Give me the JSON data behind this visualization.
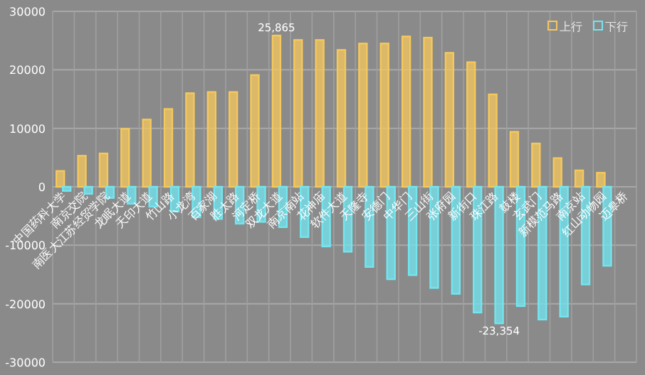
{
  "chart_data": {
    "type": "bar",
    "categories": [
      "中国药科大学",
      "南京交院",
      "南医大江苏经贸学院",
      "龙眠大道",
      "天印大道",
      "竹山路",
      "小龙湾",
      "百家湖",
      "胜太路",
      "河定桥",
      "双龙大道",
      "南京南站",
      "花神庙",
      "软件大道",
      "天隆寺",
      "安德门",
      "中华门",
      "三山街",
      "张府园",
      "新街口",
      "珠江路",
      "鼓楼",
      "玄武门",
      "新模范马路",
      "南京站",
      "红山动物园",
      "迈皋桥"
    ],
    "series": [
      {
        "name": "上行",
        "color": "#f5c85c",
        "values": [
          2700,
          5300,
          5700,
          9900,
          11500,
          13300,
          16000,
          16200,
          16200,
          19100,
          25865,
          25100,
          25100,
          23400,
          24500,
          24500,
          25700,
          25500,
          22900,
          21300,
          15800,
          9400,
          7400,
          4900,
          2800,
          2400,
          null
        ],
        "value_labels": [
          null,
          null,
          null,
          null,
          null,
          null,
          null,
          null,
          null,
          null,
          "25,865",
          null,
          null,
          null,
          null,
          null,
          null,
          null,
          null,
          null,
          null,
          null,
          null,
          null,
          null,
          null,
          null
        ]
      },
      {
        "name": "下行",
        "color": "#72e6f0",
        "values": [
          -700,
          -1200,
          -1900,
          -2900,
          -3400,
          -4200,
          -5200,
          -5500,
          -6300,
          -6000,
          -6900,
          -8600,
          -10200,
          -11100,
          -13700,
          -15800,
          -15100,
          -17300,
          -18300,
          -21500,
          -23354,
          -20400,
          -22700,
          -22200,
          -16700,
          -13500,
          null
        ],
        "value_labels": [
          null,
          null,
          null,
          null,
          null,
          null,
          null,
          null,
          null,
          null,
          null,
          null,
          null,
          null,
          null,
          null,
          null,
          null,
          null,
          null,
          "-23,354",
          null,
          null,
          null,
          null,
          null,
          null
        ]
      }
    ],
    "ylim": [
      -30000,
      30000
    ],
    "yticks": [
      -30000,
      -20000,
      -10000,
      0,
      10000,
      20000,
      30000
    ],
    "grid": true,
    "legend": "top right"
  }
}
